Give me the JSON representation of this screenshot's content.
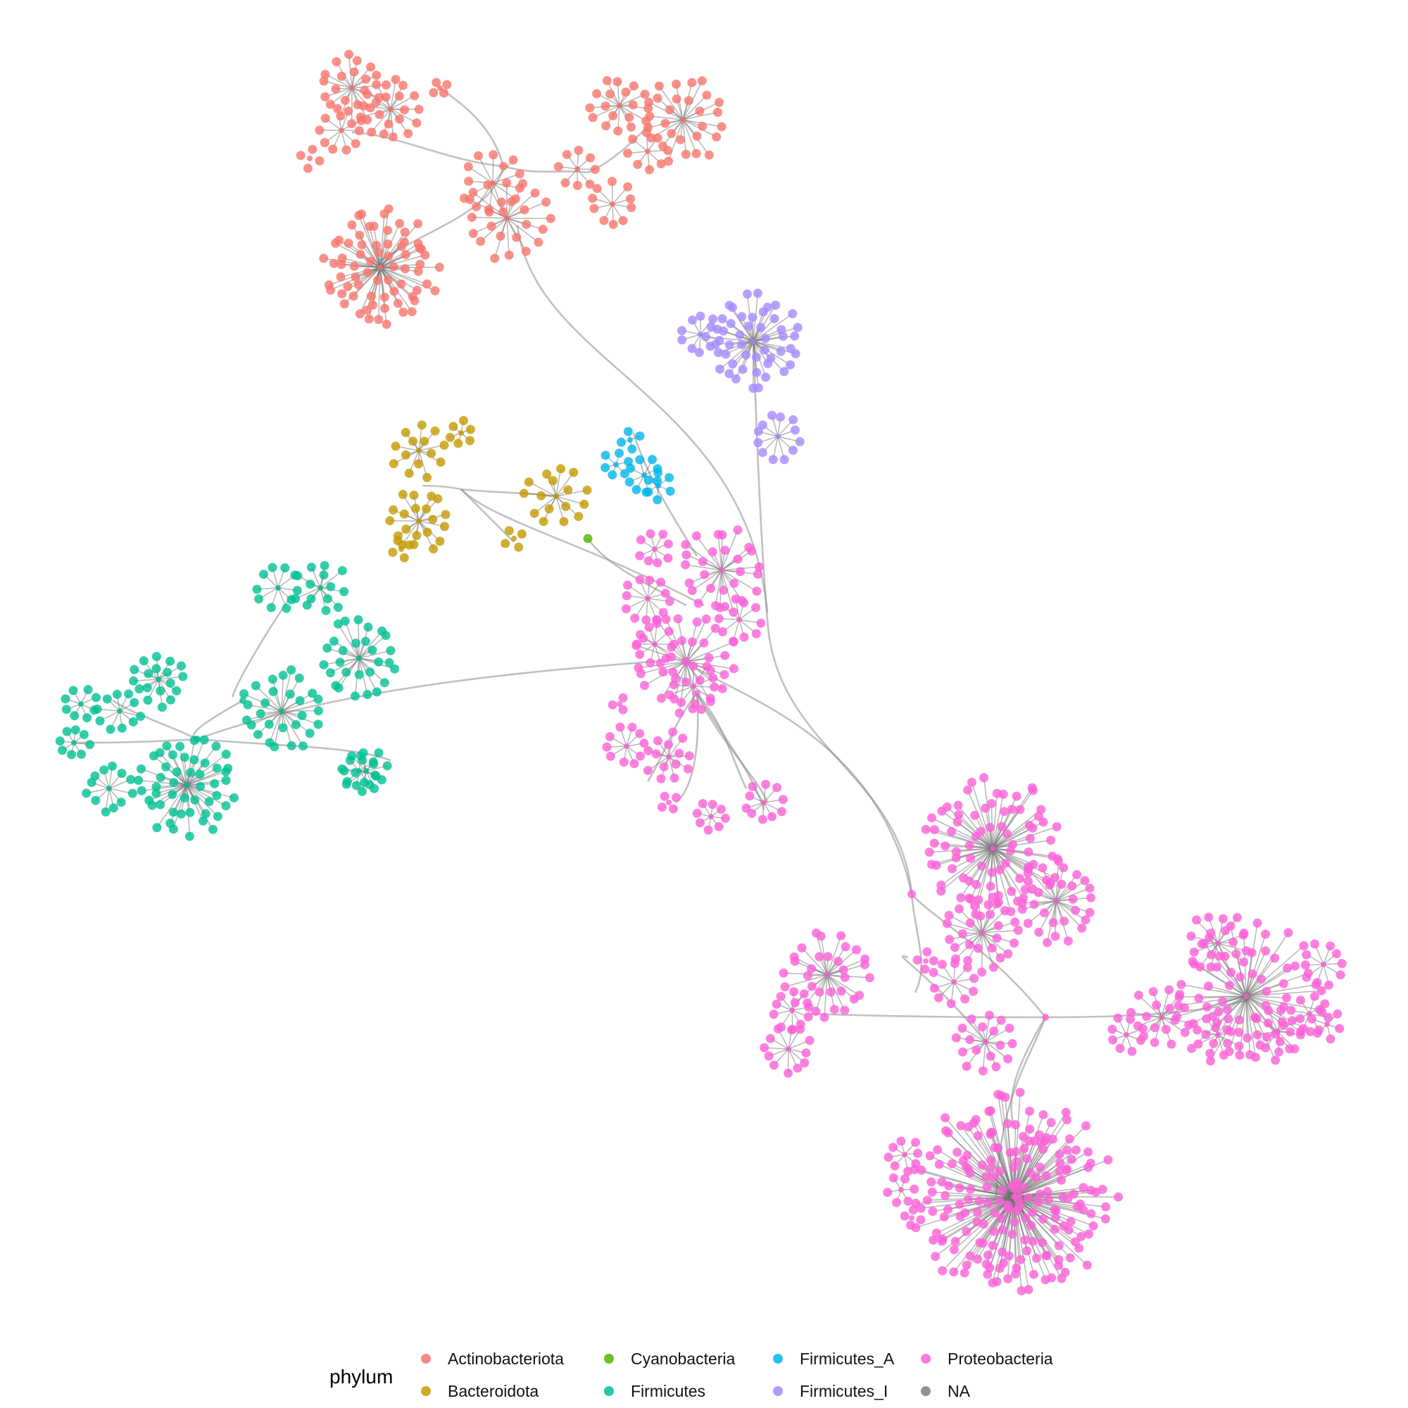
{
  "legend": {
    "title": "phylum",
    "entries": [
      {
        "label": "Actinobacteriota",
        "color": "#F8766D"
      },
      {
        "label": "Bacteroidota",
        "color": "#C49A00"
      },
      {
        "label": "Cyanobacteria",
        "color": "#53B400"
      },
      {
        "label": "Firmicutes",
        "color": "#00C094"
      },
      {
        "label": "Firmicutes_A",
        "color": "#00B6EB"
      },
      {
        "label": "Firmicutes_I",
        "color": "#A58AFF"
      },
      {
        "label": "Proteobacteria",
        "color": "#FB61D7"
      },
      {
        "label": "NA",
        "color": "#7F7F7F"
      }
    ]
  }
}
